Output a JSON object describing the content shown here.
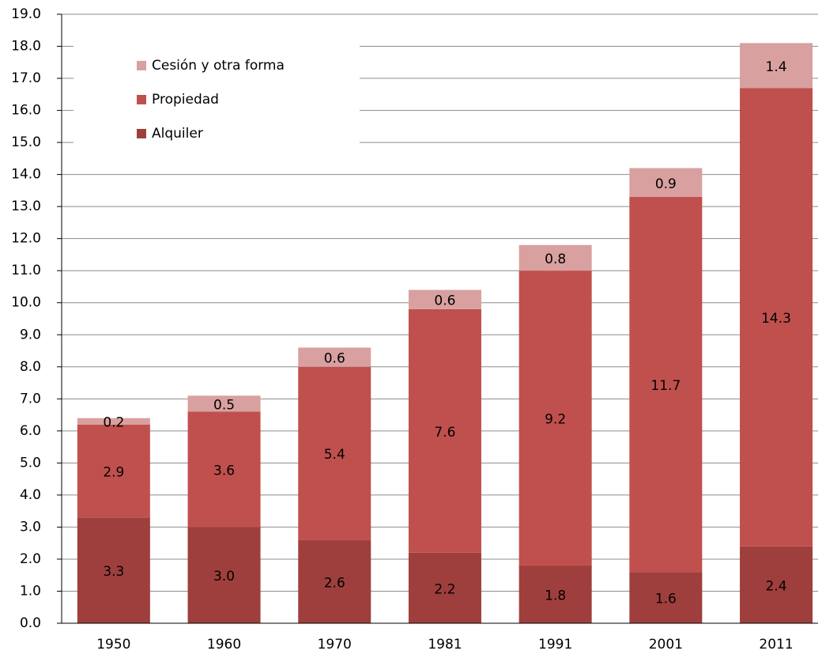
{
  "chart_data": {
    "type": "stacked_bar",
    "categories": [
      "1950",
      "1960",
      "1970",
      "1981",
      "1991",
      "2001",
      "2011"
    ],
    "series": [
      {
        "name": "Alquiler",
        "color": "#9e3f3d",
        "values": [
          3.3,
          3,
          2.6,
          2.2,
          1.8,
          1.6,
          2.4
        ],
        "value_labels": [
          "3.3",
          "3.0",
          "2.6",
          "2.2",
          "1.8",
          "1.6",
          "2.4"
        ]
      },
      {
        "name": "Propiedad",
        "color": "#c0504d",
        "values": [
          2.9,
          3.6,
          5.4,
          7.6,
          9.2,
          11.7,
          14.3
        ],
        "value_labels": [
          "2.9",
          "3.6",
          "5.4",
          "7.6",
          "9.2",
          "11.7",
          "14.3"
        ]
      },
      {
        "name": "Cesión y otra forma",
        "color": "#d9a0a0",
        "values": [
          0.2,
          0.5,
          0.6,
          0.6,
          0.8,
          0.9,
          1.4
        ],
        "value_labels": [
          "0.2",
          "0.5",
          "0.6",
          "0.6",
          "0.8",
          "0.9",
          "1.4"
        ]
      }
    ],
    "ylim": [
      0,
      19
    ],
    "yticks": [
      {
        "value": 0,
        "label": "0.0"
      },
      {
        "value": 1,
        "label": "1.0"
      },
      {
        "value": 2,
        "label": "2.0"
      },
      {
        "value": 3,
        "label": "3.0"
      },
      {
        "value": 4,
        "label": "4.0"
      },
      {
        "value": 5,
        "label": "5.0"
      },
      {
        "value": 6,
        "label": "6.0"
      },
      {
        "value": 7,
        "label": "7.0"
      },
      {
        "value": 8,
        "label": "8.0"
      },
      {
        "value": 9,
        "label": "9.0"
      },
      {
        "value": 10,
        "label": "10.0"
      },
      {
        "value": 11,
        "label": "11.0"
      },
      {
        "value": 12,
        "label": "12.0"
      },
      {
        "value": 13,
        "label": "13.0"
      },
      {
        "value": 14,
        "label": "14.0"
      },
      {
        "value": 15,
        "label": "15.0"
      },
      {
        "value": 16,
        "label": "16.0"
      },
      {
        "value": 17,
        "label": "17.0"
      },
      {
        "value": 18,
        "label": "18.0"
      },
      {
        "value": 19,
        "label": "19.0"
      }
    ],
    "grid": true,
    "legend": "upper left"
  }
}
